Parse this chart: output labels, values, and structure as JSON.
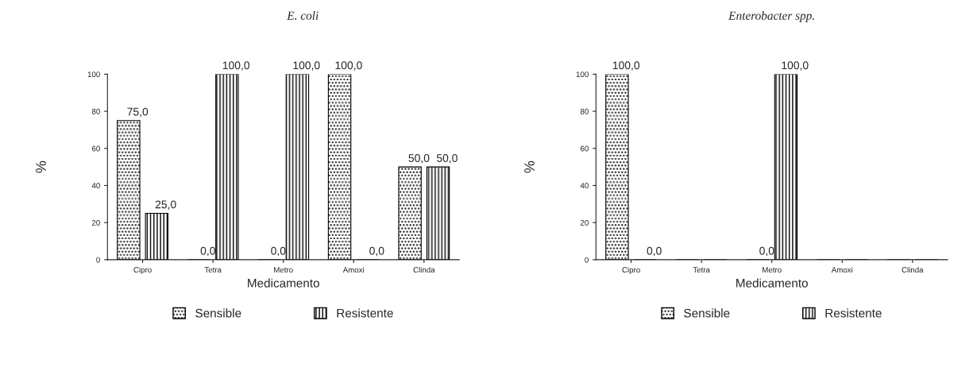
{
  "chart_data": [
    {
      "type": "bar",
      "title": "E. coli",
      "xlabel": "Medicamento",
      "ylabel": "%",
      "categories": [
        "Cipro",
        "Tetra",
        "Metro",
        "Amoxi",
        "Clinda"
      ],
      "series": [
        {
          "name": "Sensible",
          "color": "#000000",
          "values": [
            75.0,
            0.0,
            0.0,
            100.0,
            50.0
          ],
          "value_labels": [
            "75,0",
            "0,0",
            "0,0",
            "100,0",
            "50,0"
          ]
        },
        {
          "name": "Resistente",
          "color": "#000000",
          "values": [
            25.0,
            100.0,
            100.0,
            0.0,
            50.0
          ],
          "value_labels": [
            "25,0",
            "100,0",
            "100,0",
            "0,0",
            "50,0"
          ]
        }
      ],
      "ylim": [
        0,
        100
      ],
      "yticks": [
        0,
        20,
        40,
        60,
        80,
        100
      ],
      "grid": false,
      "legend": "bottom"
    },
    {
      "type": "bar",
      "title": "Enterobacter spp.",
      "xlabel": "Medicamento",
      "ylabel": "%",
      "categories": [
        "Cipro",
        "Tetra",
        "Metro",
        "Amoxi",
        "Clinda"
      ],
      "series": [
        {
          "name": "Sensible",
          "color": "#000000",
          "values": [
            100.0,
            0,
            0.0,
            0,
            0
          ],
          "value_labels": [
            "100,0",
            null,
            "0,0",
            null,
            null
          ]
        },
        {
          "name": "Resistente",
          "color": "#000000",
          "values": [
            0.0,
            0,
            100.0,
            0,
            0
          ],
          "value_labels": [
            "0,0",
            null,
            "100,0",
            null,
            null
          ]
        }
      ],
      "ylim": [
        0,
        100
      ],
      "yticks": [
        0,
        20,
        40,
        60,
        80,
        100
      ],
      "grid": false,
      "legend": "bottom"
    }
  ]
}
